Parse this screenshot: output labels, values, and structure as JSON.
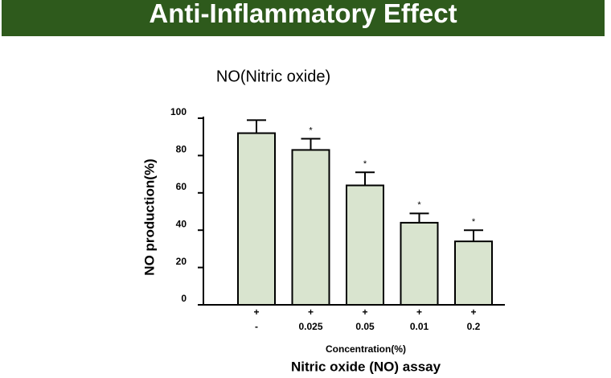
{
  "header": {
    "title": "Anti-Inflammatory Effect"
  },
  "chart_data": {
    "type": "bar",
    "title": "NO(Nitric oxide)",
    "y_label": "NO production(%)",
    "x_label": "Concentration(%)",
    "x_sublabel": "Nitric oxide (NO) assay",
    "treatment": [
      "+",
      "+",
      "+",
      "+",
      "+"
    ],
    "categories": [
      "-",
      "0.025",
      "0.05",
      "0.01",
      "0.2"
    ],
    "values": [
      92,
      83,
      64,
      44,
      34
    ],
    "errors": [
      7,
      6,
      7,
      5,
      6
    ],
    "significance": [
      null,
      "*",
      "*",
      "*",
      "*"
    ],
    "color": "#d9e4cf",
    "ylim": [
      0,
      100
    ],
    "yticks": [
      0,
      20,
      40,
      60,
      80,
      100
    ]
  }
}
